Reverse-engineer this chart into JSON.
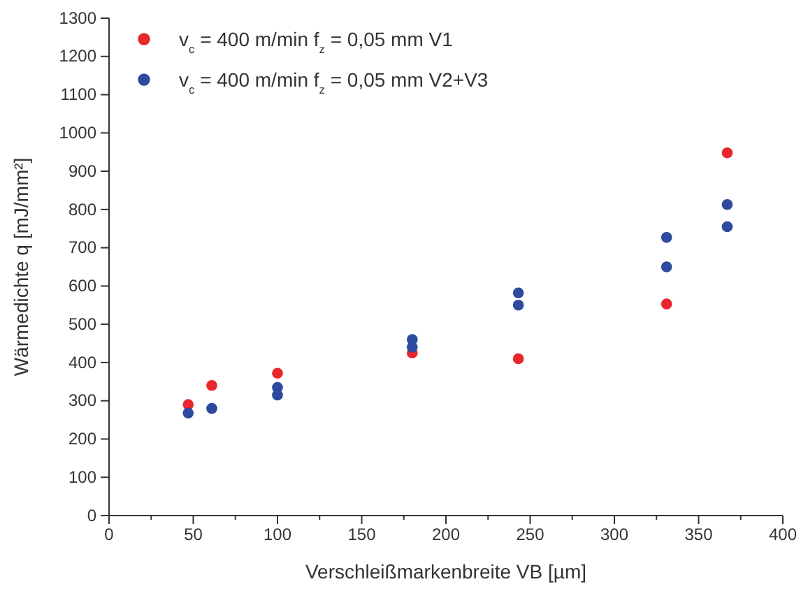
{
  "chart_data": {
    "type": "scatter",
    "xlabel": "Verschleißmarkenbreite VB [µm]",
    "ylabel": "Wärmedichte q [mJ/mm²]",
    "xlim": [
      0,
      400
    ],
    "ylim": [
      0,
      1300
    ],
    "xticks": [
      0,
      {
        "value": 25,
        "label": null
      },
      50,
      {
        "value": 75,
        "label": null
      },
      100,
      {
        "value": 125,
        "label": null
      },
      150,
      {
        "value": 175,
        "label": null
      },
      200,
      {
        "value": 225,
        "label": null
      },
      250,
      {
        "value": 275,
        "label": null
      },
      300,
      {
        "value": 325,
        "label": null
      },
      350,
      {
        "value": 375,
        "label": null
      },
      400
    ],
    "yticks": [
      0,
      100,
      200,
      300,
      400,
      500,
      600,
      700,
      800,
      900,
      1000,
      1100,
      1200,
      1300
    ],
    "marker": "circle",
    "legend": "top left",
    "grid": false,
    "series": [
      {
        "name": "v$_{c}$ = 400 m/min f$_{z}$ = 0,05 mm V1",
        "color": "#e8262b",
        "x": [
          47,
          61,
          100,
          180,
          243,
          331,
          367
        ],
        "values": [
          290,
          340,
          372,
          425,
          410,
          553,
          948
        ]
      },
      {
        "name": "v$_{c}$ = 400 m/min f$_{z}$ = 0,05 mm V2+V3",
        "color": "#2e4a9e",
        "x": [
          47,
          61,
          100,
          100,
          180,
          180,
          243,
          243,
          331,
          331,
          367,
          367
        ],
        "values": [
          268,
          280,
          315,
          335,
          440,
          460,
          550,
          582,
          650,
          727,
          755,
          813
        ]
      }
    ]
  }
}
